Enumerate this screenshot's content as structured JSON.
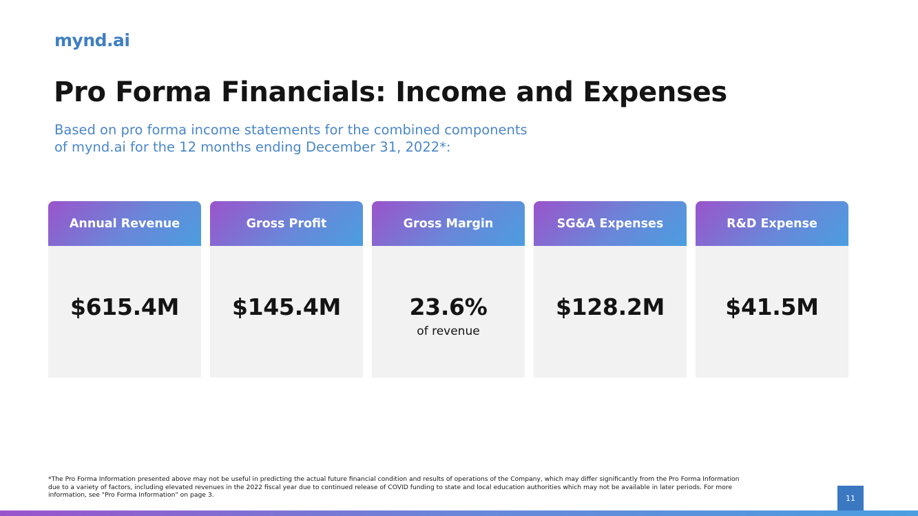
{
  "logo": "mynd.ai",
  "title": "Pro Forma Financials: Income and Expenses",
  "subtitle_line1": "Based on pro forma income statements for the combined components",
  "subtitle_line2": "of mynd.ai for the 12 months ending December 31, 2022*:",
  "cards": [
    {
      "label": "Annual Revenue",
      "value": "$615.4M",
      "note": ""
    },
    {
      "label": "Gross Profit",
      "value": "$145.4M",
      "note": ""
    },
    {
      "label": "Gross Margin",
      "value": "23.6%",
      "note": "of revenue"
    },
    {
      "label": "SG&A Expenses",
      "value": "$128.2M",
      "note": ""
    },
    {
      "label": "R&D Expense",
      "value": "$41.5M",
      "note": ""
    }
  ],
  "footnote_line1": "*The Pro Forma Information presented above may not be useful in predicting the actual future financial condition and results of operations of the Company, which may differ significantly from the Pro Forma Information",
  "footnote_line2": "due to a variety of factors, including elevated revenues in the 2022 fiscal year due to continued release of COVID funding to state and local education authorities which may not be available in later periods. For more",
  "footnote_line3": "information, see \"Pro Forma Information\" on page 3.",
  "page_number": "11",
  "colors": {
    "brand_blue": "#3f7ec2",
    "gradient_start": "#9a54cb",
    "gradient_end": "#4b9ee0",
    "card_body": "#f2f2f2"
  }
}
